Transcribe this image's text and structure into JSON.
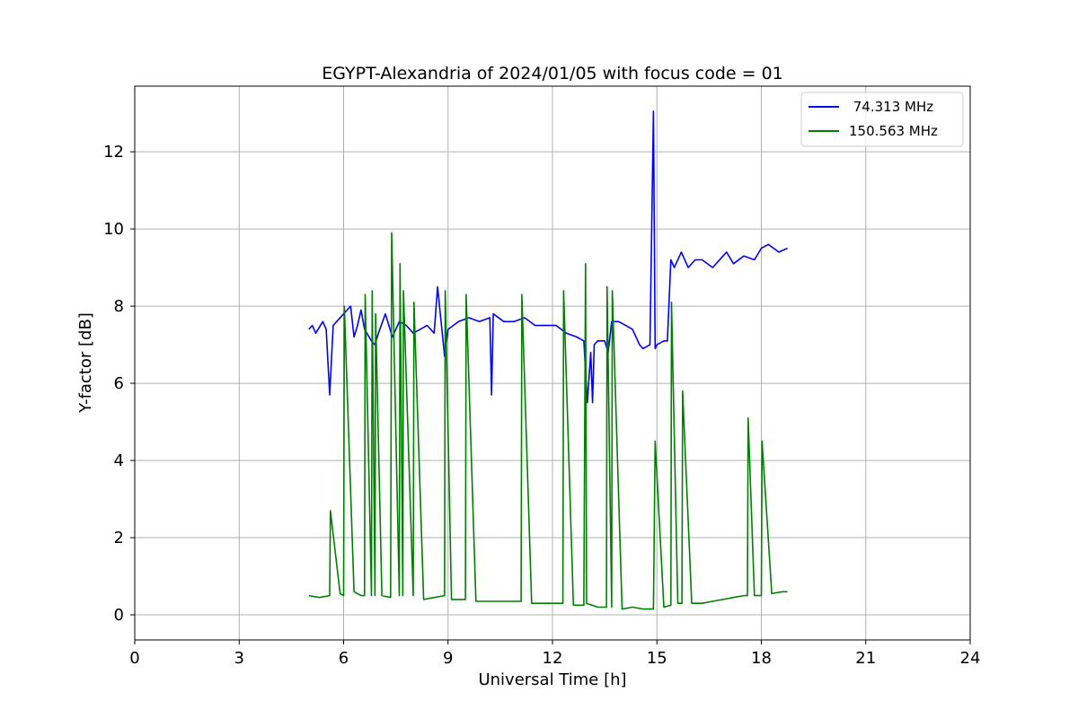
{
  "chart_data": {
    "type": "line",
    "title": "EGYPT-Alexandria of 2024/01/05 with focus code = 01",
    "xlabel": "Universal Time [h]",
    "ylabel": "Y-factor [dB]",
    "xlim": [
      0,
      24
    ],
    "ylim": [
      -0.65,
      13.7
    ],
    "xticks": [
      0,
      3,
      6,
      9,
      12,
      15,
      18,
      21,
      24
    ],
    "yticks": [
      0,
      2,
      4,
      6,
      8,
      10,
      12
    ],
    "grid": true,
    "legend_position": "top-right",
    "series": [
      {
        "name": " 74.313 MHz",
        "color": "#0000ff",
        "x": [
          5.0,
          5.1,
          5.2,
          5.4,
          5.5,
          5.6,
          5.7,
          5.8,
          6.0,
          6.2,
          6.3,
          6.4,
          6.5,
          6.6,
          6.8,
          6.9,
          7.0,
          7.2,
          7.4,
          7.6,
          7.8,
          8.0,
          8.2,
          8.4,
          8.6,
          8.7,
          8.8,
          8.9,
          9.0,
          9.3,
          9.6,
          9.9,
          10.2,
          10.25,
          10.3,
          10.6,
          10.9,
          11.2,
          11.5,
          11.8,
          12.1,
          12.4,
          12.7,
          12.9,
          13.0,
          13.1,
          13.15,
          13.2,
          13.3,
          13.5,
          13.6,
          13.7,
          13.9,
          14.1,
          14.3,
          14.5,
          14.6,
          14.8,
          14.9,
          14.95,
          15.0,
          15.2,
          15.3,
          15.4,
          15.5,
          15.7,
          15.9,
          16.1,
          16.3,
          16.6,
          16.9,
          17.0,
          17.2,
          17.5,
          17.8,
          18.0,
          18.2,
          18.5,
          18.75
        ],
        "y": [
          7.4,
          7.5,
          7.3,
          7.6,
          7.4,
          5.7,
          7.5,
          7.6,
          7.8,
          8.0,
          7.2,
          7.5,
          7.9,
          7.4,
          7.1,
          7.0,
          7.3,
          7.8,
          7.2,
          7.6,
          7.5,
          7.3,
          7.4,
          7.5,
          7.3,
          8.5,
          7.6,
          6.7,
          7.4,
          7.6,
          7.7,
          7.6,
          7.7,
          5.7,
          7.8,
          7.6,
          7.6,
          7.7,
          7.5,
          7.5,
          7.5,
          7.3,
          7.2,
          7.1,
          5.5,
          6.8,
          5.5,
          7.0,
          7.1,
          7.1,
          6.8,
          7.6,
          7.6,
          7.5,
          7.4,
          7.0,
          6.9,
          7.0,
          13.05,
          6.9,
          7.0,
          7.1,
          7.1,
          9.2,
          9.0,
          9.4,
          9.0,
          9.2,
          9.2,
          9.0,
          9.3,
          9.4,
          9.1,
          9.3,
          9.2,
          9.5,
          9.6,
          9.4,
          9.5
        ]
      },
      {
        "name": "150.563 MHz",
        "color": "#008000",
        "x": [
          5.0,
          5.3,
          5.6,
          5.62,
          5.9,
          6.0,
          6.02,
          6.3,
          6.5,
          6.6,
          6.62,
          6.8,
          6.82,
          6.9,
          6.92,
          7.1,
          7.35,
          7.38,
          7.6,
          7.62,
          7.7,
          7.72,
          8.0,
          8.02,
          8.3,
          8.6,
          8.9,
          8.92,
          9.1,
          9.5,
          9.52,
          9.8,
          10.1,
          10.4,
          11.1,
          11.12,
          11.4,
          11.7,
          12.0,
          12.3,
          12.32,
          12.6,
          12.9,
          12.95,
          12.98,
          13.3,
          13.55,
          13.57,
          13.7,
          13.72,
          14.0,
          14.3,
          14.6,
          14.9,
          14.95,
          15.2,
          15.4,
          15.42,
          15.6,
          15.72,
          15.74,
          16.0,
          16.3,
          16.6,
          16.9,
          17.2,
          17.5,
          17.6,
          17.62,
          17.8,
          18.0,
          18.02,
          18.3,
          18.6,
          18.75
        ],
        "y": [
          0.5,
          0.45,
          0.5,
          2.7,
          0.55,
          0.5,
          8.0,
          0.6,
          0.5,
          0.5,
          8.3,
          0.5,
          8.4,
          0.5,
          7.8,
          0.5,
          0.45,
          9.9,
          0.5,
          9.1,
          0.5,
          8.4,
          0.5,
          8.1,
          0.4,
          0.45,
          0.5,
          8.4,
          0.4,
          0.4,
          8.3,
          0.35,
          0.35,
          0.35,
          0.35,
          8.3,
          0.3,
          0.3,
          0.3,
          0.3,
          8.4,
          0.25,
          0.25,
          9.1,
          0.3,
          0.2,
          0.2,
          8.5,
          0.2,
          8.4,
          0.15,
          0.2,
          0.15,
          0.15,
          4.5,
          0.2,
          0.25,
          8.1,
          0.3,
          0.3,
          5.8,
          0.3,
          0.3,
          0.35,
          0.4,
          0.45,
          0.5,
          0.5,
          5.1,
          0.5,
          0.5,
          4.5,
          0.55,
          0.6,
          0.6
        ]
      }
    ]
  }
}
